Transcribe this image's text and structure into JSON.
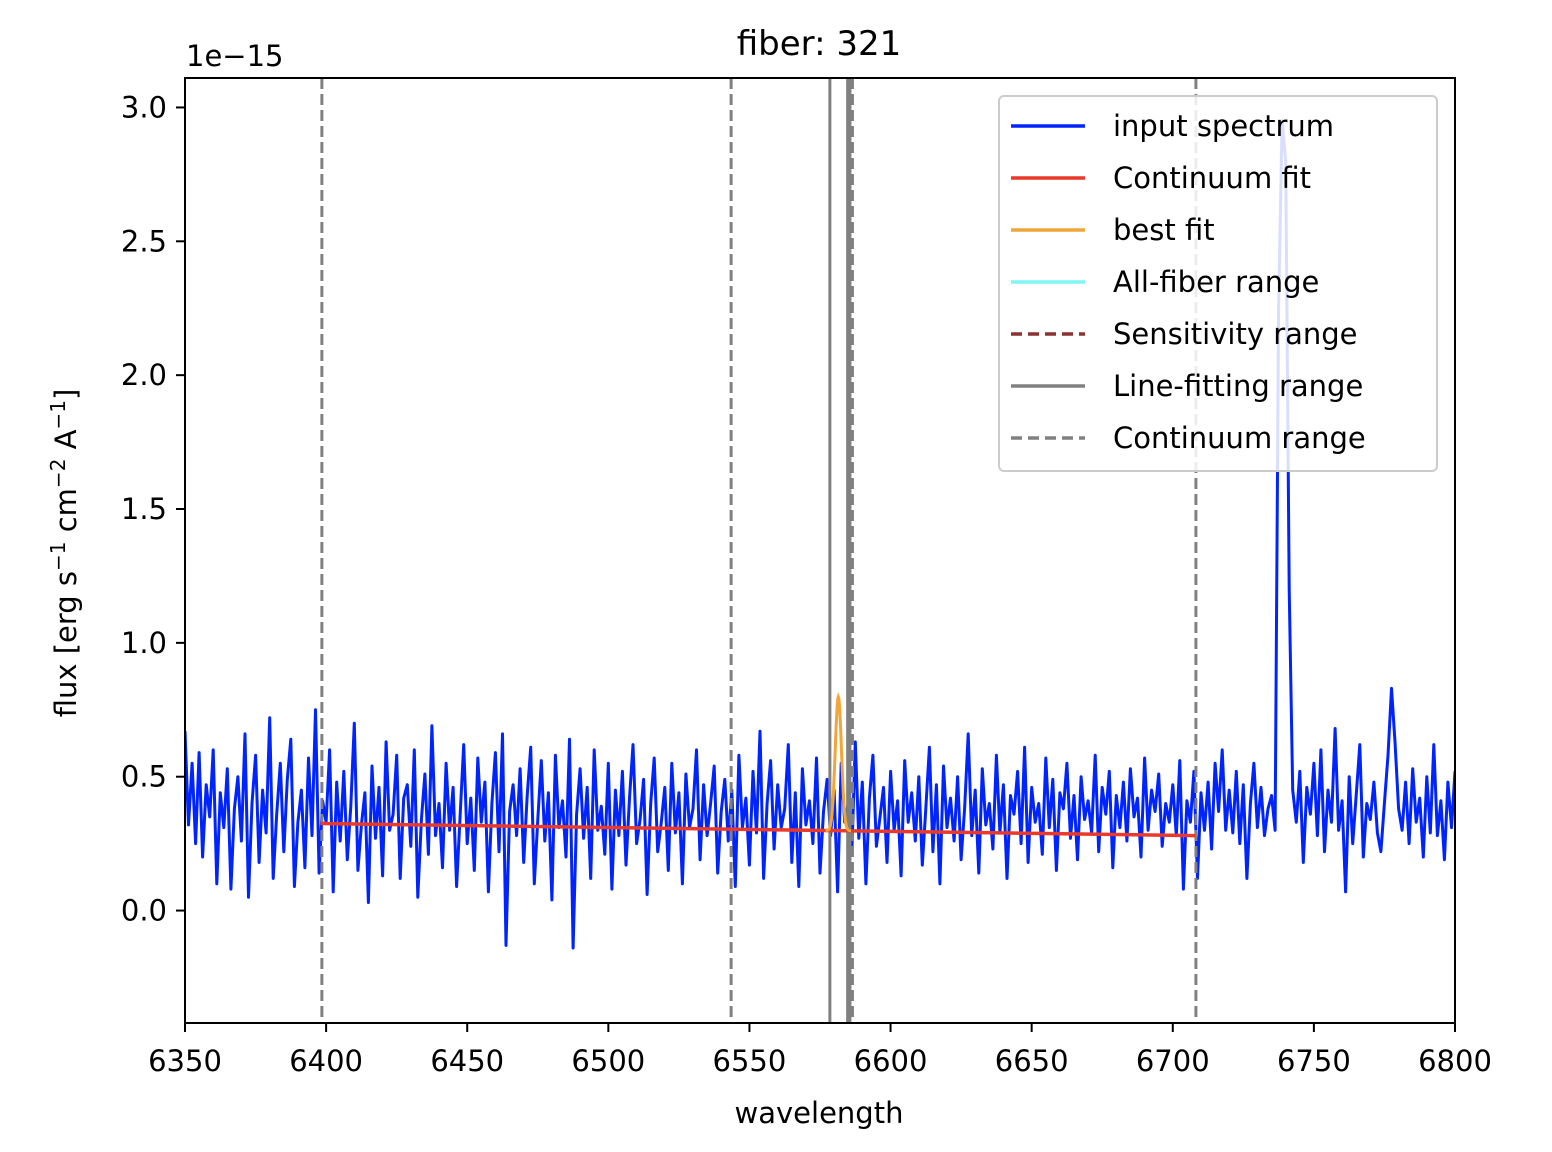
{
  "chart_data": {
    "type": "line",
    "title": "fiber: 321",
    "xlabel": "wavelength",
    "ylabel": "flux [erg s",
    "ylabel_parts": {
      "base": "flux [erg s",
      "sup1": "−1",
      "mid1": " cm",
      "sup2": "−2",
      "mid2": " A",
      "sup3": "−1",
      "end": "]"
    },
    "y_offset_text": "1e−15",
    "xlim": [
      6350,
      6800
    ],
    "ylim": [
      -0.42,
      3.11
    ],
    "y_scale_note": "values in units of 1e-15",
    "x_ticks": [
      6350,
      6400,
      6450,
      6500,
      6550,
      6600,
      6650,
      6700,
      6750,
      6800
    ],
    "y_ticks": [
      0.0,
      0.5,
      1.0,
      1.5,
      2.0,
      2.5,
      3.0
    ],
    "y_tick_labels": [
      "0.0",
      "0.5",
      "1.0",
      "1.5",
      "2.0",
      "2.5",
      "3.0"
    ],
    "grid": false,
    "legend_position": "upper-right",
    "series": [
      {
        "name": "input spectrum",
        "color": "#0024ff",
        "style": "solid",
        "x_start": 6350,
        "x_step": 1.25,
        "values": [
          0.67,
          0.32,
          0.55,
          0.25,
          0.59,
          0.2,
          0.47,
          0.35,
          0.6,
          0.1,
          0.44,
          0.31,
          0.53,
          0.08,
          0.38,
          0.5,
          0.26,
          0.66,
          0.05,
          0.4,
          0.58,
          0.18,
          0.45,
          0.29,
          0.72,
          0.12,
          0.36,
          0.55,
          0.22,
          0.49,
          0.64,
          0.09,
          0.33,
          0.45,
          0.16,
          0.57,
          0.28,
          0.75,
          0.14,
          0.41,
          0.33,
          0.6,
          0.07,
          0.48,
          0.26,
          0.52,
          0.19,
          0.39,
          0.7,
          0.15,
          0.32,
          0.44,
          0.03,
          0.54,
          0.27,
          0.46,
          0.13,
          0.63,
          0.3,
          0.36,
          0.58,
          0.12,
          0.42,
          0.47,
          0.24,
          0.6,
          0.05,
          0.34,
          0.51,
          0.21,
          0.69,
          0.28,
          0.4,
          0.16,
          0.55,
          0.3,
          0.46,
          0.09,
          0.36,
          0.62,
          0.25,
          0.42,
          0.15,
          0.57,
          0.33,
          0.48,
          0.07,
          0.4,
          0.59,
          0.22,
          0.66,
          -0.13,
          0.37,
          0.47,
          0.28,
          0.53,
          0.18,
          0.43,
          0.61,
          0.1,
          0.34,
          0.56,
          0.26,
          0.44,
          0.04,
          0.58,
          0.31,
          0.41,
          0.2,
          0.64,
          -0.14,
          0.36,
          0.53,
          0.27,
          0.46,
          0.12,
          0.6,
          0.3,
          0.39,
          0.21,
          0.55,
          0.08,
          0.45,
          0.28,
          0.52,
          0.17,
          0.42,
          0.62,
          0.25,
          0.34,
          0.49,
          0.06,
          0.4,
          0.57,
          0.22,
          0.33,
          0.46,
          0.15,
          0.55,
          0.29,
          0.44,
          0.1,
          0.51,
          0.31,
          0.38,
          0.6,
          0.19,
          0.47,
          0.28,
          0.4,
          0.54,
          0.14,
          0.37,
          0.49,
          0.26,
          0.45,
          0.09,
          0.58,
          0.31,
          0.42,
          0.17,
          0.52,
          0.29,
          0.67,
          0.12,
          0.4,
          0.56,
          0.23,
          0.47,
          0.31,
          0.38,
          0.62,
          0.18,
          0.44,
          0.09,
          0.53,
          0.32,
          0.41,
          0.25,
          0.57,
          0.14,
          0.37,
          0.49,
          0.28,
          0.45,
          0.07,
          0.55,
          0.33,
          0.4,
          0.21,
          0.63,
          0.27,
          0.48,
          0.1,
          0.42,
          0.58,
          0.24,
          0.35,
          0.46,
          0.18,
          0.52,
          0.3,
          0.41,
          0.13,
          0.56,
          0.33,
          0.44,
          0.26,
          0.5,
          0.17,
          0.38,
          0.61,
          0.22,
          0.47,
          0.1,
          0.54,
          0.31,
          0.42,
          0.26,
          0.5,
          0.19,
          0.38,
          0.66,
          0.28,
          0.45,
          0.14,
          0.53,
          0.32,
          0.4,
          0.23,
          0.58,
          0.29,
          0.47,
          0.12,
          0.43,
          0.36,
          0.52,
          0.25,
          0.61,
          0.18,
          0.46,
          0.33,
          0.4,
          0.21,
          0.57,
          0.31,
          0.49,
          0.15,
          0.44,
          0.38,
          0.55,
          0.27,
          0.43,
          0.19,
          0.5,
          0.34,
          0.41,
          0.29,
          0.58,
          0.22,
          0.46,
          0.36,
          0.52,
          0.16,
          0.43,
          0.31,
          0.48,
          0.26,
          0.53,
          0.35,
          0.42,
          0.2,
          0.57,
          0.3,
          0.45,
          0.37,
          0.51,
          0.24,
          0.4,
          0.33,
          0.47,
          0.28,
          0.56,
          0.08,
          0.41,
          0.33,
          0.52,
          0.12,
          0.44,
          0.3,
          0.48,
          0.23,
          0.55,
          0.37,
          0.6,
          0.3,
          0.45,
          0.29,
          0.52,
          0.25,
          0.47,
          0.12,
          0.4,
          0.55,
          0.31,
          0.46,
          0.28,
          0.38,
          0.43,
          0.3,
          2.25,
          2.95,
          2.8,
          1.2,
          0.45,
          0.33,
          0.52,
          0.18,
          0.46,
          0.36,
          0.55,
          0.28,
          0.6,
          0.22,
          0.45,
          0.33,
          0.68,
          0.3,
          0.41,
          0.07,
          0.5,
          0.25,
          0.43,
          0.62,
          0.2,
          0.4,
          0.34,
          0.48,
          0.29,
          0.22,
          0.4,
          0.58,
          0.83,
          0.63,
          0.38,
          0.3,
          0.48,
          0.25,
          0.53,
          0.33,
          0.42,
          0.2,
          0.5,
          0.29,
          0.62,
          0.28,
          0.41,
          0.19,
          0.48,
          0.31,
          0.52,
          0.25,
          0.45,
          0.12,
          0.4,
          0.34,
          0.5,
          0.22,
          0.44,
          0.3,
          0.47,
          0.16,
          0.55,
          0.32,
          0.42,
          0.26,
          0.49,
          0.2,
          0.38,
          0.58,
          0.11,
          0.43,
          0.3,
          0.52,
          0.24,
          0.46,
          0.33,
          0.4,
          0.09,
          0.54,
          0.29,
          0.44,
          0.2,
          0.62,
          0.35,
          0.48,
          0.15,
          0.41,
          0.3,
          0.55,
          0.25,
          0.45,
          0.08,
          0.37,
          0.5,
          0.29,
          0.66,
          0.22,
          0.43,
          0.33,
          0.55,
          0.18,
          0.47,
          0.3,
          0.4,
          0.12,
          0.58,
          0.28,
          0.44,
          0.24,
          0.51,
          0.35,
          0.42,
          0.07,
          0.49,
          0.31,
          0.45,
          0.2,
          0.61,
          0.27,
          0.38,
          0.52,
          0.15,
          0.45,
          0.33,
          0.48,
          0.24,
          0.57,
          0.3,
          0.42,
          0.11,
          0.46,
          0.32,
          0.53,
          0.25,
          0.4,
          0.19,
          0.55,
          0.35,
          0.47,
          0.29,
          0.43,
          0.14,
          0.58,
          0.3,
          0.45,
          0.22,
          0.51,
          0.33,
          0.64,
          0.25,
          0.42,
          0.08,
          0.48,
          0.31,
          0.53,
          0.27,
          0.44,
          0.19,
          0.59,
          0.34,
          0.41,
          0.26,
          0.5,
          0.12,
          0.46,
          0.3,
          0.55,
          0.22,
          0.43,
          0.36,
          0.49,
          0.28,
          0.6,
          0.15,
          0.42,
          0.33,
          0.52,
          0.24,
          0.45,
          0.09,
          0.57,
          0.3,
          0.4,
          0.21,
          0.63,
          0.33,
          0.46,
          0.19,
          0.51,
          0.28,
          0.42,
          0.1,
          0.55,
          0.32,
          0.47,
          0.25,
          0.61,
          0.17,
          0.43,
          0.36,
          0.5,
          0.27,
          0.58,
          0.2,
          0.44,
          0.3,
          0.53,
          0.13,
          0.41,
          0.34,
          0.49,
          0.22,
          0.66,
          0.29,
          0.45,
          0.17,
          0.38,
          0.55,
          0.31,
          0.46,
          0.24,
          0.52,
          0.08,
          0.43,
          0.33,
          0.59,
          0.26,
          0.47,
          0.18,
          0.4,
          0.54,
          0.3,
          0.44,
          0.21,
          0.62,
          0.33,
          0.48,
          0.12,
          0.42,
          0.35,
          0.51,
          0.25,
          0.58,
          0.17,
          0.45,
          0.3,
          0.39,
          0.53,
          0.21,
          0.46,
          0.33,
          0.61,
          0.09,
          0.43,
          0.36,
          0.5,
          0.27,
          0.56,
          0.19,
          0.42,
          0.31,
          0.55,
          0.24,
          0.48,
          0.13,
          0.4,
          0.57,
          0.29,
          0.45,
          0.22,
          0.52,
          0.34,
          0.44,
          0.16,
          0.6,
          0.3,
          0.47,
          0.25,
          0.53,
          0.11,
          0.42,
          0.36,
          0.49,
          0.2,
          0.58,
          0.28,
          0.46,
          0.33,
          0.4,
          0.07,
          0.55,
          0.31,
          0.62,
          0.24,
          0.44,
          0.37,
          0.51,
          0.18,
          0.42,
          0.3,
          0.59,
          0.23,
          0.47,
          0.35,
          0.4,
          0.14,
          0.54,
          0.3,
          0.45,
          0.26,
          0.56,
          0.39,
          0.48,
          0.21,
          0.38,
          0.6,
          0.28,
          0.44,
          0.12,
          0.5,
          0.33,
          0.45,
          0.24,
          0.58,
          0.19,
          0.42,
          0.36,
          0.51,
          0.28,
          0.63,
          0.22,
          0.46,
          0.32,
          0.41,
          0.04,
          0.53,
          0.3,
          0.47,
          0.25,
          0.4,
          0.1,
          0.57
        ]
      },
      {
        "name": "Continuum fit",
        "color": "#e8392a",
        "style": "solid",
        "x": [
          6398,
          6708
        ],
        "values": [
          0.325,
          0.28
        ]
      },
      {
        "name": "best fit",
        "color": "#f0a63a",
        "style": "solid",
        "model": "gaussian",
        "center": 6581.5,
        "sigma": 1.1,
        "amplitude": 0.5,
        "x_range": [
          6577,
          6586
        ]
      },
      {
        "name": "All-fiber range",
        "color": "#7ff5f5",
        "style": "solid"
      },
      {
        "name": "Sensitivity range",
        "color": "#8b3232",
        "style": "dashed"
      },
      {
        "name": "Line-fitting range",
        "color": "#808080",
        "style": "solid",
        "vlines": [
          6578.5,
          6584.8,
          6585.6
        ]
      },
      {
        "name": "Continuum range",
        "color": "#808080",
        "style": "dashed",
        "vlines": [
          6398.5,
          6543.5,
          6586.5,
          6708.2
        ]
      }
    ]
  }
}
